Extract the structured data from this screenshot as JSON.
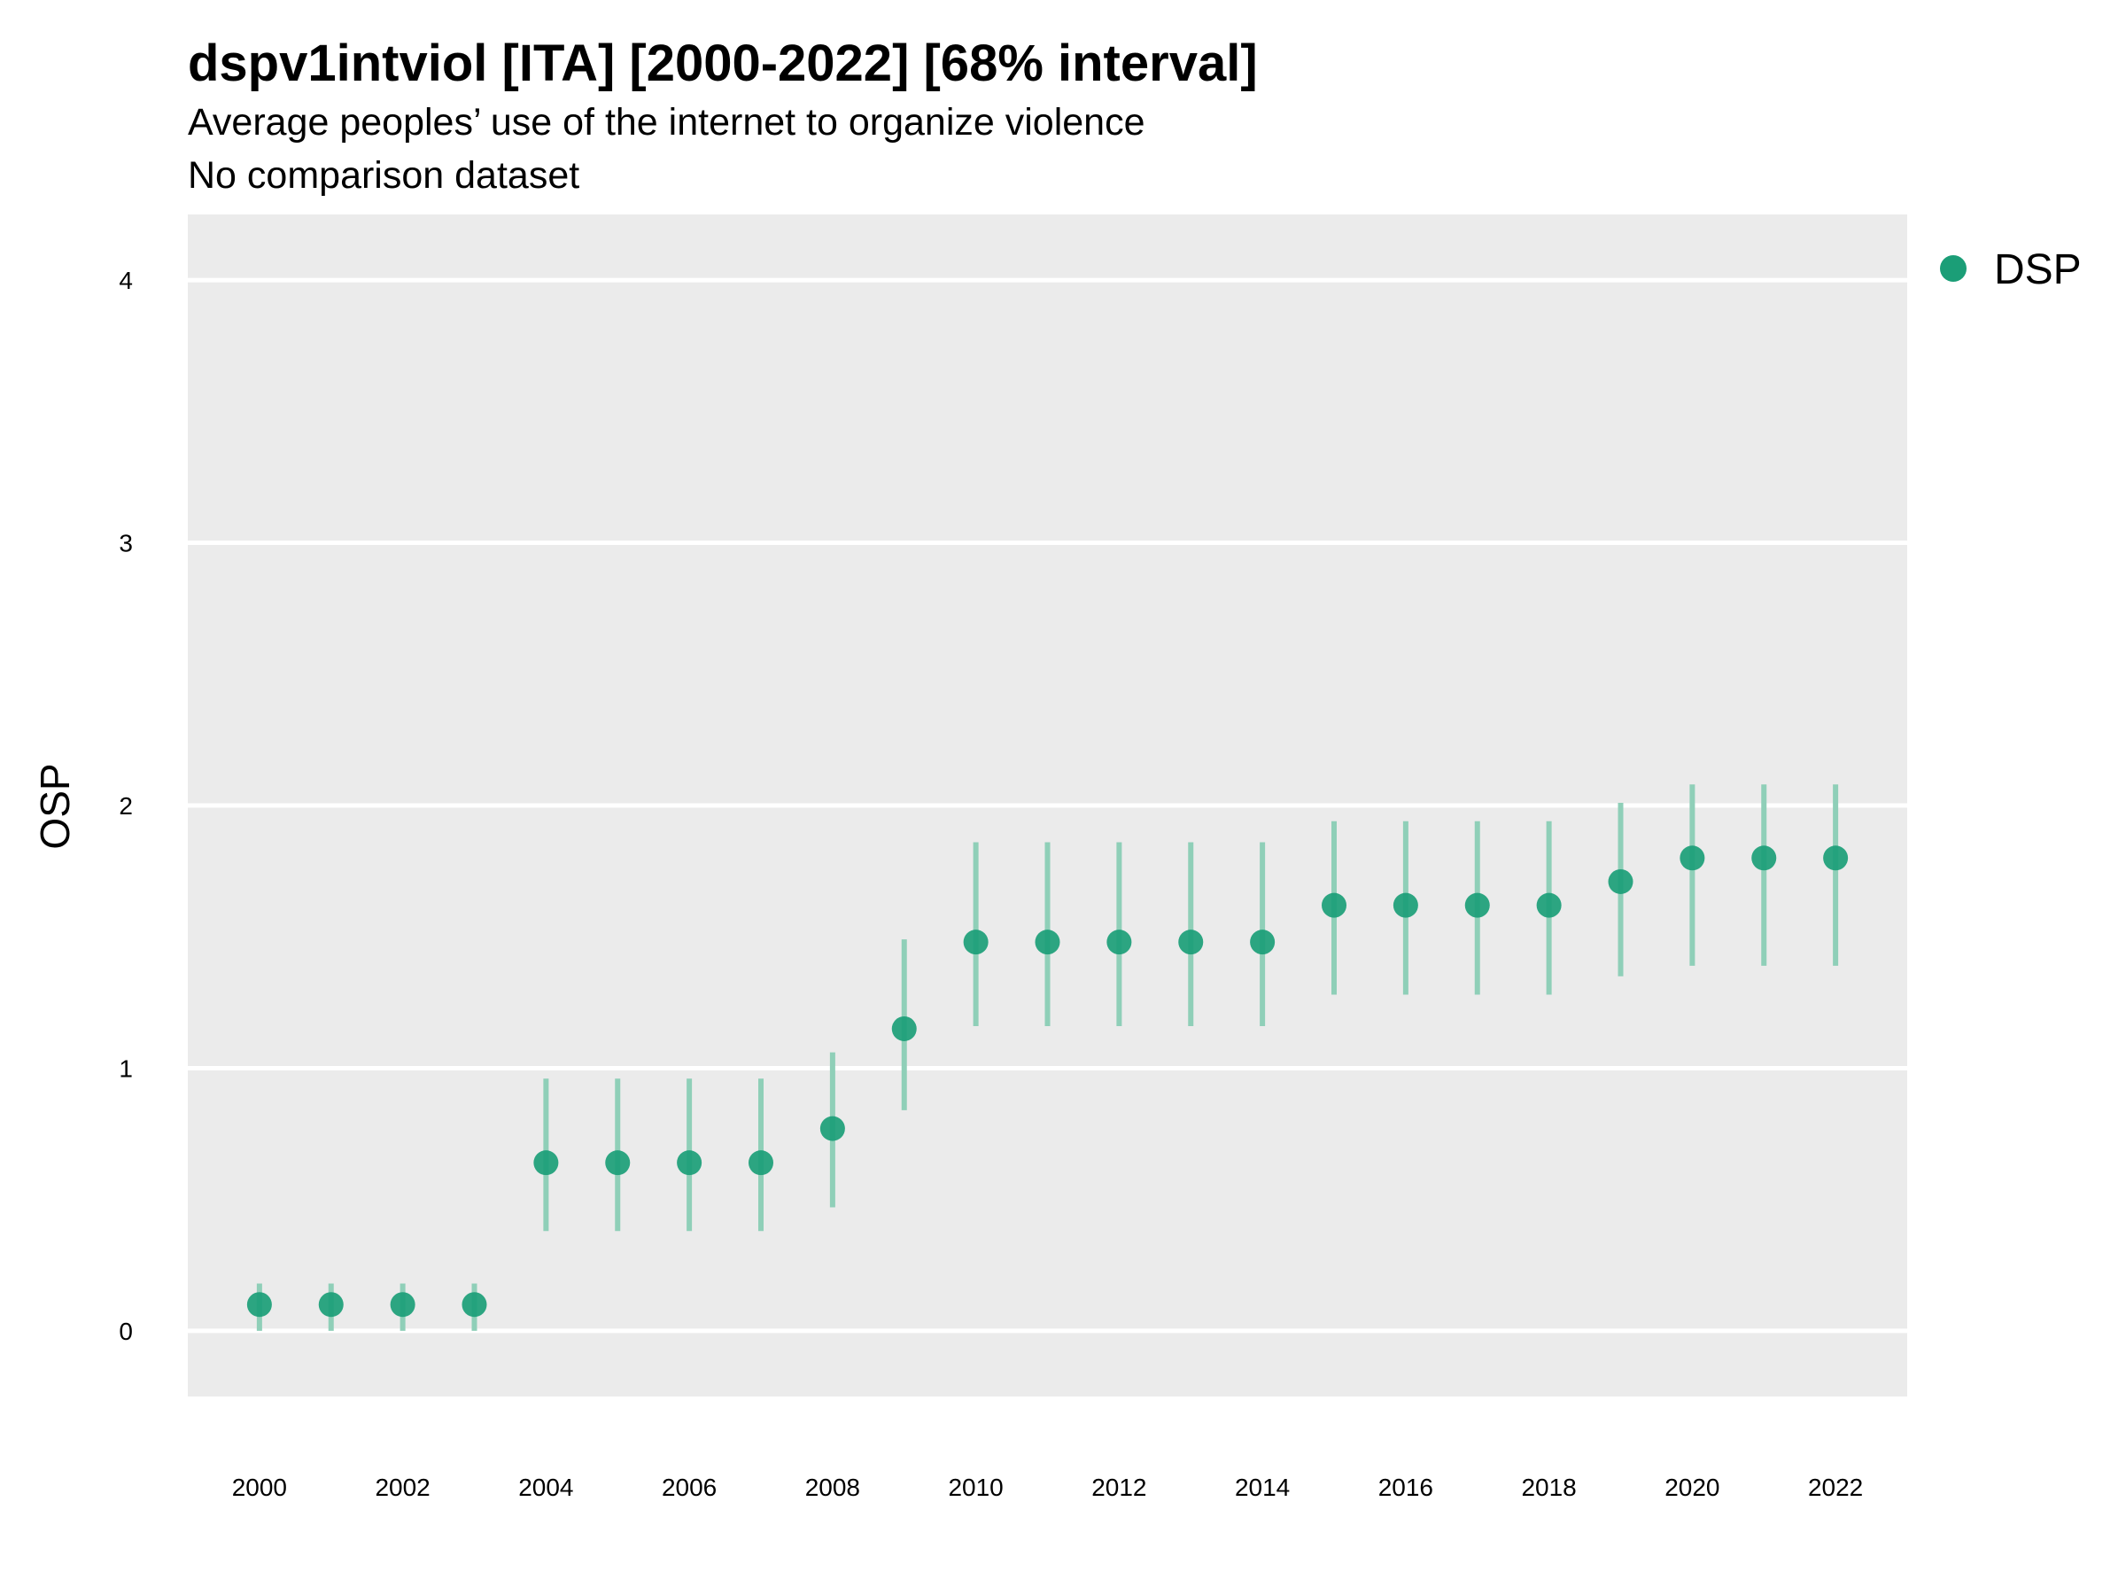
{
  "header": {
    "title": "dspv1intviol [ITA] [2000-2022] [68% interval]",
    "subtitle": "Average peoples’ use of the internet to organize violence",
    "subtitle2": "No comparison dataset"
  },
  "colors": {
    "panel_bg": "#ebebeb",
    "grid": "#ffffff",
    "point": "#1b9e77",
    "interval": "#8fcfb8"
  },
  "chart_data": {
    "type": "scatter",
    "title": "dspv1intviol [ITA] [2000-2022] [68% interval]",
    "subtitle": "Average peoples’ use of the internet to organize violence",
    "ylabel": "OSP",
    "xlabel": "",
    "ylim": [
      -0.25,
      4.25
    ],
    "xlim": [
      1999,
      2023
    ],
    "yticks": [
      0,
      1,
      2,
      3,
      4
    ],
    "xticks": [
      2000,
      2002,
      2004,
      2006,
      2008,
      2010,
      2012,
      2014,
      2016,
      2018,
      2020,
      2022
    ],
    "grid": true,
    "legend_position": "right",
    "series": [
      {
        "name": "DSP",
        "x": [
          2000,
          2001,
          2002,
          2003,
          2004,
          2005,
          2006,
          2007,
          2008,
          2009,
          2010,
          2011,
          2012,
          2013,
          2014,
          2015,
          2016,
          2017,
          2018,
          2019,
          2020,
          2021,
          2022
        ],
        "y": [
          0.1,
          0.1,
          0.1,
          0.1,
          0.64,
          0.64,
          0.64,
          0.64,
          0.77,
          1.15,
          1.48,
          1.48,
          1.48,
          1.48,
          1.48,
          1.62,
          1.62,
          1.62,
          1.62,
          1.71,
          1.8,
          1.8,
          1.8
        ],
        "lower": [
          0.0,
          0.0,
          0.0,
          0.0,
          0.38,
          0.38,
          0.38,
          0.38,
          0.47,
          0.84,
          1.16,
          1.16,
          1.16,
          1.16,
          1.16,
          1.28,
          1.28,
          1.28,
          1.28,
          1.35,
          1.39,
          1.39,
          1.39
        ],
        "upper": [
          0.18,
          0.18,
          0.18,
          0.18,
          0.96,
          0.96,
          0.96,
          0.96,
          1.06,
          1.49,
          1.86,
          1.86,
          1.86,
          1.86,
          1.86,
          1.94,
          1.94,
          1.94,
          1.94,
          2.01,
          2.08,
          2.08,
          2.08
        ]
      }
    ]
  }
}
